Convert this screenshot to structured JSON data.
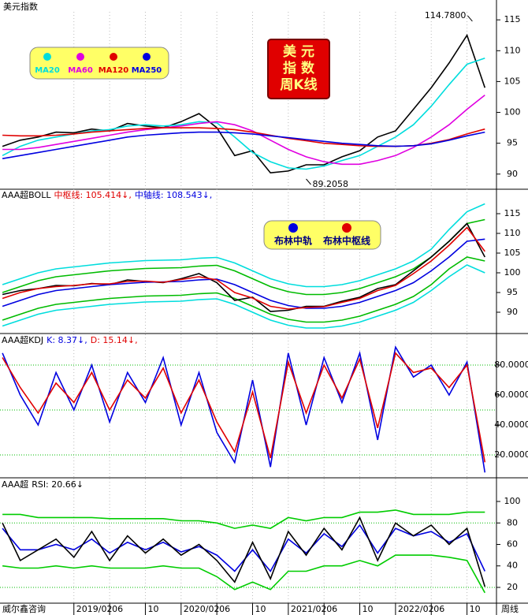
{
  "footer": {
    "source": "威尔鑫咨询",
    "period": "周线"
  },
  "chart_data": [
    {
      "type": "line",
      "title": "美元指数",
      "x": [
        5,
        7,
        9,
        11,
        13,
        15,
        17,
        19,
        21,
        23,
        25,
        27,
        29,
        31,
        33,
        35,
        37,
        39,
        41,
        43,
        45,
        47,
        49,
        51,
        53,
        55,
        57,
        59
      ],
      "xlim": [
        4.73,
        60.3
      ],
      "ylim": [
        87.8,
        116.3
      ],
      "yticks": [
        90,
        95,
        100,
        105,
        110,
        115
      ],
      "stamp": [
        "美  元",
        "指  数",
        "周K线"
      ],
      "annotations": [
        {
          "x": 57.6,
          "value": 114.78,
          "label": "114.7800"
        },
        {
          "x": 39,
          "value": 89.2058,
          "label": "89.2058"
        }
      ],
      "series": [
        {
          "color": "#000000",
          "values": [
            94.5,
            95.5,
            96,
            96.8,
            96.7,
            97.3,
            97,
            98.2,
            97.8,
            97.5,
            98.5,
            99.8,
            97.5,
            93,
            93.8,
            90.2,
            90.5,
            91.5,
            91.5,
            92.8,
            93.8,
            96,
            97,
            100.5,
            104,
            108,
            112.5,
            104
          ]
        },
        {
          "name": "MA20",
          "color": "#00dddd",
          "values": [
            93,
            94.5,
            95.5,
            96,
            96.5,
            97,
            97.2,
            97.8,
            98,
            97.8,
            98,
            98.5,
            98.3,
            96,
            93.5,
            92,
            91,
            90.8,
            91.3,
            92.2,
            93,
            94.5,
            96,
            98,
            101,
            104.5,
            107.8,
            108.8
          ]
        },
        {
          "name": "MA60",
          "color": "#e000e0",
          "values": [
            94,
            94,
            94.3,
            94.8,
            95.3,
            95.8,
            96.3,
            96.8,
            97.2,
            97.5,
            97.8,
            98.2,
            98.5,
            98,
            97,
            95.5,
            94,
            92.8,
            92,
            91.6,
            91.6,
            92.2,
            93,
            94.3,
            96,
            98,
            100.5,
            102.8
          ]
        },
        {
          "name": "MA120",
          "color": "#e00000",
          "values": [
            96.3,
            96.2,
            96.2,
            96.3,
            96.5,
            96.8,
            97,
            97.2,
            97.4,
            97.5,
            97.5,
            97.5,
            97.4,
            97.2,
            96.8,
            96.3,
            95.8,
            95.4,
            95,
            94.8,
            94.6,
            94.5,
            94.5,
            94.6,
            95,
            95.6,
            96.5,
            97.3
          ]
        },
        {
          "name": "MA250",
          "color": "#0000e0",
          "values": [
            92.5,
            93,
            93.5,
            94,
            94.5,
            95,
            95.5,
            96,
            96.3,
            96.5,
            96.7,
            96.8,
            96.8,
            96.7,
            96.5,
            96.2,
            95.9,
            95.6,
            95.3,
            95,
            94.8,
            94.6,
            94.5,
            94.6,
            94.9,
            95.5,
            96.2,
            96.8
          ]
        }
      ]
    },
    {
      "type": "line",
      "header": [
        {
          "text": "AAA超BOLL",
          "color": "#000000"
        },
        {
          "text": "中枢线: 105.414↓,",
          "color": "#e00000"
        },
        {
          "text": "中轴线: 108.543↓,",
          "color": "#0000e0"
        }
      ],
      "x": [
        5,
        7,
        9,
        11,
        13,
        15,
        17,
        19,
        21,
        23,
        25,
        27,
        29,
        31,
        33,
        35,
        37,
        39,
        41,
        43,
        45,
        47,
        49,
        51,
        53,
        55,
        57,
        59
      ],
      "xlim": [
        4.73,
        60.3
      ],
      "ylim": [
        84.8,
        121.2
      ],
      "yticks": [
        90,
        95,
        100,
        105,
        110,
        115
      ],
      "series": [
        {
          "color": "#00dddd",
          "values": [
            97,
            98.5,
            100,
            101,
            101.5,
            102,
            102.5,
            102.8,
            103.1,
            103.2,
            103.3,
            103.7,
            103.9,
            102.5,
            100.5,
            98.5,
            97.2,
            96.5,
            96.5,
            97,
            98,
            99.5,
            101,
            103,
            106,
            111,
            115.5,
            117.5
          ]
        },
        {
          "color": "#00dddd",
          "values": [
            86.5,
            88,
            89.5,
            90.5,
            91,
            91.5,
            92,
            92.3,
            92.6,
            92.7,
            92.8,
            93.2,
            93.4,
            92,
            90,
            88,
            86.7,
            86,
            86,
            86.5,
            87.5,
            89,
            90.5,
            92.5,
            95.5,
            99,
            102,
            100
          ]
        },
        {
          "color": "#00bb00",
          "values": [
            95,
            96.5,
            98,
            99,
            99.5,
            100,
            100.5,
            100.8,
            101.1,
            101.2,
            101.3,
            101.7,
            101.9,
            100.5,
            98.5,
            96.5,
            95.2,
            94.5,
            94.5,
            95,
            96,
            97.5,
            99,
            101,
            104,
            108,
            112.5,
            113.5
          ]
        },
        {
          "color": "#00bb00",
          "values": [
            88,
            89.5,
            91,
            92,
            92.5,
            93,
            93.5,
            93.8,
            94.1,
            94.2,
            94.3,
            94.7,
            94.9,
            93.5,
            91.5,
            89.5,
            88.2,
            87.5,
            87.5,
            88,
            89,
            90.5,
            92,
            94,
            97,
            101,
            104,
            103
          ]
        },
        {
          "color": "#000000",
          "values": [
            94.5,
            95.5,
            96,
            96.8,
            96.7,
            97.3,
            97,
            98.2,
            97.8,
            97.5,
            98.5,
            99.8,
            97.5,
            93,
            93.8,
            90.2,
            90.5,
            91.5,
            91.5,
            92.8,
            93.8,
            96,
            97,
            100.5,
            104,
            108,
            112.5,
            104
          ]
        },
        {
          "name": "布林中轨",
          "color": "#0000e0",
          "values": [
            91.5,
            93,
            94.5,
            95.5,
            96,
            96.5,
            97,
            97.3,
            97.6,
            97.7,
            97.8,
            98.2,
            98.4,
            97,
            95,
            93,
            91.7,
            91,
            91,
            91.5,
            92.5,
            94,
            95.5,
            97.5,
            100.5,
            104,
            108,
            108.543
          ]
        },
        {
          "name": "布林中枢线",
          "color": "#e00000",
          "values": [
            93.5,
            95,
            96,
            96.5,
            96.8,
            97.2,
            97.2,
            97.8,
            97.9,
            97.6,
            98.3,
            99,
            98.2,
            95,
            93.6,
            91.5,
            90.8,
            91.2,
            91.4,
            92.5,
            93.5,
            95.5,
            96.8,
            99.8,
            103,
            107,
            111.5,
            105.414
          ]
        }
      ]
    },
    {
      "type": "line",
      "header": [
        {
          "text": "AAA超KDJ",
          "color": "#000000"
        },
        {
          "text": "K: 8.37↓,",
          "color": "#0000e0"
        },
        {
          "text": "D: 15.14↓,",
          "color": "#e00000"
        }
      ],
      "x": [
        5,
        7,
        9,
        11,
        13,
        15,
        17,
        19,
        21,
        23,
        25,
        27,
        29,
        31,
        33,
        35,
        37,
        39,
        41,
        43,
        45,
        47,
        49,
        51,
        53,
        55,
        57,
        59
      ],
      "xlim": [
        4.73,
        60.3
      ],
      "ylim": [
        5.3,
        100.5
      ],
      "yticks": [
        {
          "value": 20,
          "label": "20.0000"
        },
        {
          "value": 40,
          "label": "40.0000"
        },
        {
          "value": 60,
          "label": "60.0000"
        },
        {
          "value": 80,
          "label": "80.0000"
        }
      ],
      "ref_lines": [
        80,
        50,
        20
      ],
      "series": [
        {
          "color": "#0000e0",
          "values": [
            88,
            60,
            40,
            75,
            50,
            80,
            42,
            75,
            55,
            85,
            40,
            75,
            35,
            15,
            70,
            12,
            88,
            40,
            85,
            55,
            88,
            30,
            92,
            72,
            80,
            60,
            82,
            8.37
          ]
        },
        {
          "color": "#e00000",
          "values": [
            85,
            65,
            48,
            68,
            55,
            75,
            50,
            70,
            58,
            78,
            48,
            70,
            42,
            22,
            62,
            18,
            82,
            48,
            80,
            58,
            84,
            38,
            88,
            75,
            78,
            65,
            80,
            15.14
          ]
        }
      ]
    },
    {
      "type": "line",
      "header": [
        {
          "text": "AAA超",
          "color": "#000000"
        },
        {
          "text": "RSI: 20.66↓",
          "color": "#000000"
        }
      ],
      "x": [
        5,
        7,
        9,
        11,
        13,
        15,
        17,
        19,
        21,
        23,
        25,
        27,
        29,
        31,
        33,
        35,
        37,
        39,
        41,
        43,
        45,
        47,
        49,
        51,
        53,
        55,
        57,
        59
      ],
      "xlim": [
        4.73,
        60.3
      ],
      "ylim": [
        5.3,
        121.3
      ],
      "yticks": [
        20,
        40,
        60,
        80,
        100
      ],
      "ref_lines": [
        80,
        20
      ],
      "xticks": [
        {
          "value": 13,
          "label": "2019/02"
        },
        {
          "value": 17,
          "label": "06"
        },
        {
          "value": 21,
          "label": "10"
        },
        {
          "value": 25,
          "label": "2020/02"
        },
        {
          "value": 29,
          "label": "06"
        },
        {
          "value": 33,
          "label": "10"
        },
        {
          "value": 37,
          "label": "2021/02"
        },
        {
          "value": 41,
          "label": "06"
        },
        {
          "value": 45,
          "label": "10"
        },
        {
          "value": 49,
          "label": "2022/02"
        },
        {
          "value": 53,
          "label": "06"
        },
        {
          "value": 57,
          "label": "10"
        }
      ],
      "series": [
        {
          "color": "#00cc00",
          "values": [
            88,
            88,
            85,
            85,
            85,
            85,
            84,
            84,
            84,
            84,
            82,
            82,
            80,
            75,
            78,
            75,
            85,
            82,
            85,
            85,
            90,
            90,
            92,
            88,
            88,
            88,
            90,
            90
          ]
        },
        {
          "color": "#00cc00",
          "values": [
            40,
            38,
            38,
            40,
            38,
            40,
            38,
            38,
            38,
            40,
            38,
            38,
            30,
            18,
            25,
            18,
            35,
            35,
            40,
            40,
            45,
            40,
            50,
            50,
            50,
            48,
            45,
            15
          ]
        },
        {
          "color": "#0000e0",
          "values": [
            75,
            55,
            55,
            60,
            55,
            65,
            52,
            62,
            55,
            62,
            53,
            58,
            50,
            35,
            55,
            35,
            65,
            52,
            70,
            58,
            78,
            52,
            75,
            68,
            72,
            62,
            70,
            35
          ]
        },
        {
          "color": "#000000",
          "values": [
            80,
            45,
            55,
            65,
            48,
            72,
            45,
            68,
            52,
            65,
            50,
            60,
            45,
            25,
            62,
            28,
            72,
            50,
            75,
            55,
            85,
            45,
            80,
            68,
            78,
            60,
            75,
            20.66
          ]
        }
      ]
    }
  ]
}
